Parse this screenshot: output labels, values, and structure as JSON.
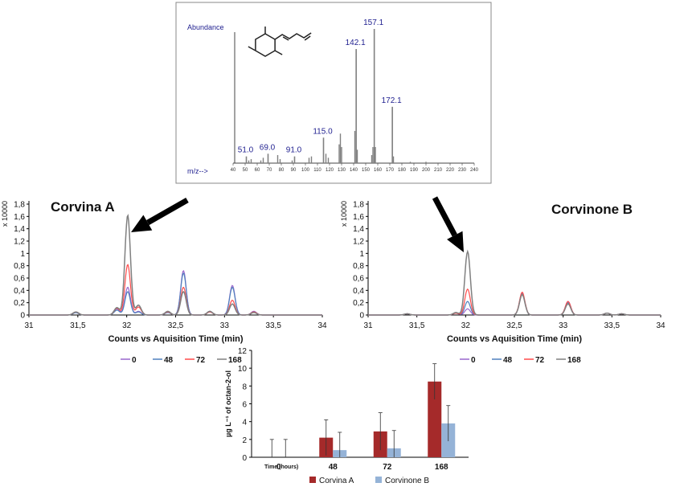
{
  "colors": {
    "c0": "#9966cc",
    "c48": "#4f81bd",
    "c72": "#ff4b4b",
    "c168": "#808080",
    "corvinaA": "#a52a2a",
    "corvinoneB": "#95b3d7",
    "spectrum": "#808080",
    "spectrumText": "#1f1f8f"
  },
  "arrow_icons": [
    "arrow-down-left-icon",
    "arrow-down-right-icon"
  ],
  "molecule_icon": "trimethylphenyl-butadiene-structure-icon",
  "chart_data": [
    {
      "id": "mass-spectrum",
      "type": "bar",
      "ylabel": "Abundance",
      "xlabel": "m/z-->",
      "xlim": [
        40,
        240
      ],
      "ylim": [
        0,
        1
      ],
      "x_ticks": [
        "40",
        "50",
        "60",
        "70",
        "80",
        "90",
        "100",
        "110",
        "120",
        "130",
        "140",
        "150",
        "160",
        "170",
        "180",
        "190",
        "200",
        "210",
        "220",
        "230",
        "240"
      ],
      "labeled_peaks": [
        {
          "x": 51.0,
          "y": 0.05,
          "label": "51.0"
        },
        {
          "x": 69.0,
          "y": 0.07,
          "label": "69.0"
        },
        {
          "x": 91.0,
          "y": 0.05,
          "label": "91.0"
        },
        {
          "x": 115.0,
          "y": 0.19,
          "label": "115.0"
        },
        {
          "x": 142.1,
          "y": 0.85,
          "label": "142.1"
        },
        {
          "x": 157.1,
          "y": 1.0,
          "label": "157.1"
        },
        {
          "x": 172.1,
          "y": 0.42,
          "label": "172.1"
        }
      ],
      "minor_peaks": [
        {
          "x": 53,
          "y": 0.02
        },
        {
          "x": 55,
          "y": 0.03
        },
        {
          "x": 63,
          "y": 0.02
        },
        {
          "x": 65,
          "y": 0.04
        },
        {
          "x": 77,
          "y": 0.06
        },
        {
          "x": 79,
          "y": 0.03
        },
        {
          "x": 89,
          "y": 0.02
        },
        {
          "x": 103,
          "y": 0.04
        },
        {
          "x": 105,
          "y": 0.05
        },
        {
          "x": 117,
          "y": 0.07
        },
        {
          "x": 119,
          "y": 0.04
        },
        {
          "x": 128,
          "y": 0.14
        },
        {
          "x": 129,
          "y": 0.22
        },
        {
          "x": 130,
          "y": 0.12
        },
        {
          "x": 141,
          "y": 0.24
        },
        {
          "x": 143,
          "y": 0.1
        },
        {
          "x": 155,
          "y": 0.06
        },
        {
          "x": 156,
          "y": 0.12
        },
        {
          "x": 158,
          "y": 0.12
        },
        {
          "x": 173,
          "y": 0.05
        },
        {
          "x": 187,
          "y": 0.01
        },
        {
          "x": 200,
          "y": 0.01
        }
      ]
    },
    {
      "id": "chromatogram-corvina-a",
      "type": "line",
      "title": "Corvina A",
      "xlabel": "Counts vs Aquisition Time (min)",
      "y_multiplier": "x 10000",
      "xlim": [
        31,
        34
      ],
      "ylim": [
        0,
        1.8
      ],
      "x_ticks": [
        "31",
        "31,5",
        "32",
        "32,5",
        "33",
        "33,5",
        "34"
      ],
      "y_ticks": [
        "0",
        "0,2",
        "0,4",
        "0,6",
        "0,8",
        "1",
        "1,2",
        "1,4",
        "1,6",
        "1,8"
      ],
      "legend": [
        "0",
        "48",
        "72",
        "168"
      ],
      "peaks_x": [
        31.48,
        31.9,
        32.01,
        32.12,
        32.42,
        32.58,
        32.85,
        33.08,
        33.3
      ],
      "series": [
        {
          "name": "0",
          "heights": [
            0.04,
            0.1,
            0.45,
            0.06,
            0.05,
            0.72,
            0.06,
            0.48,
            0.06
          ]
        },
        {
          "name": "48",
          "heights": [
            0.04,
            0.08,
            0.38,
            0.05,
            0.04,
            0.68,
            0.05,
            0.45,
            0.05
          ]
        },
        {
          "name": "72",
          "heights": [
            0.05,
            0.11,
            0.82,
            0.13,
            0.05,
            0.45,
            0.05,
            0.24,
            0.05
          ]
        },
        {
          "name": "168",
          "heights": [
            0.05,
            0.12,
            1.62,
            0.16,
            0.06,
            0.38,
            0.06,
            0.18,
            0.04
          ]
        }
      ]
    },
    {
      "id": "chromatogram-corvinone-b",
      "type": "line",
      "title": "Corvinone B",
      "xlabel": "Counts vs Aquisition Time (min)",
      "y_multiplier": "x 10000",
      "xlim": [
        31,
        34
      ],
      "ylim": [
        0,
        1.8
      ],
      "x_ticks": [
        "31",
        "31,5",
        "32",
        "32,5",
        "33",
        "33,5",
        "34"
      ],
      "y_ticks": [
        "0",
        "0,2",
        "0,4",
        "0,6",
        "0,8",
        "1",
        "1,2",
        "1,4",
        "1,6",
        "1,8"
      ],
      "legend": [
        "0",
        "48",
        "72",
        "168"
      ],
      "peaks_x": [
        31.4,
        31.9,
        32.02,
        32.58,
        33.05,
        33.45,
        33.6
      ],
      "series": [
        {
          "name": "0",
          "heights": [
            0.02,
            0.03,
            0.1,
            0.35,
            0.22,
            0.03,
            0.02
          ]
        },
        {
          "name": "48",
          "heights": [
            0.02,
            0.03,
            0.22,
            0.35,
            0.2,
            0.03,
            0.02
          ]
        },
        {
          "name": "72",
          "heights": [
            0.02,
            0.03,
            0.42,
            0.37,
            0.22,
            0.03,
            0.02
          ]
        },
        {
          "name": "168",
          "heights": [
            0.02,
            0.04,
            1.03,
            0.33,
            0.18,
            0.03,
            0.02
          ]
        }
      ]
    },
    {
      "id": "octan-bar-chart",
      "type": "bar",
      "categories": [
        "0",
        "48",
        "72",
        "168"
      ],
      "xlabel": "Time (hours)",
      "ylabel": "µg L⁻¹ of octan-2-ol",
      "ylim": [
        0,
        12
      ],
      "y_ticks": [
        "0",
        "2",
        "4",
        "6",
        "8",
        "10",
        "12"
      ],
      "series": [
        {
          "name": "Corvina A",
          "values": [
            0,
            2.2,
            2.9,
            8.5
          ],
          "errors": [
            2.0,
            2.0,
            2.1,
            2.0
          ]
        },
        {
          "name": "Corvinone B",
          "values": [
            0,
            0.8,
            1.0,
            3.8
          ],
          "errors": [
            2.0,
            2.0,
            2.0,
            2.0
          ]
        }
      ]
    }
  ]
}
